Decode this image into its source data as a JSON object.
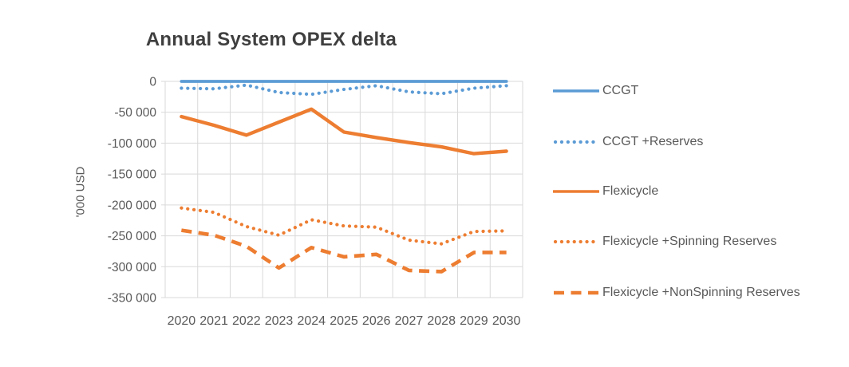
{
  "page": {
    "background": "#ffffff"
  },
  "chart_data": {
    "type": "line",
    "title": "Annual System OPEX delta",
    "ylabel": "'000 USD",
    "categories": [
      "2020",
      "2021",
      "2022",
      "2023",
      "2024",
      "2025",
      "2026",
      "2027",
      "2028",
      "2029",
      "2030"
    ],
    "ylim": [
      -350000,
      0
    ],
    "ytick_interval": 50000,
    "ytick_labels": [
      "0",
      "-50 000",
      "-100 000",
      "-150 000",
      "-200 000",
      "-250 000",
      "-300 000",
      "-350 000"
    ],
    "grid": true,
    "legend_position": "right",
    "colors": {
      "blue": "#5B9BD5",
      "orange": "#ED7D31",
      "gridline": "#D9D9D9",
      "axis_text": "#595959",
      "title_text": "#3F3F3F"
    },
    "series": [
      {
        "name": "CCGT",
        "color": "#5B9BD5",
        "line_style": "solid",
        "values": [
          0,
          0,
          0,
          0,
          0,
          0,
          0,
          0,
          0,
          0,
          0
        ]
      },
      {
        "name": "CCGT +Reserves",
        "color": "#5B9BD5",
        "line_style": "dotted",
        "values": [
          -11000,
          -12000,
          -6000,
          -18000,
          -21000,
          -13000,
          -7000,
          -17000,
          -20000,
          -11000,
          -7000
        ]
      },
      {
        "name": "Flexicycle",
        "color": "#ED7D31",
        "line_style": "solid",
        "values": [
          -57000,
          -71000,
          -87000,
          -66000,
          -45000,
          -82000,
          -91000,
          -99000,
          -106000,
          -117000,
          -113000
        ]
      },
      {
        "name": "Flexicycle +Spinning Reserves",
        "color": "#ED7D31",
        "line_style": "dotted",
        "values": [
          -205000,
          -212000,
          -235000,
          -249000,
          -224000,
          -234000,
          -236000,
          -257000,
          -263000,
          -243000,
          -242000
        ]
      },
      {
        "name": "Flexicycle +NonSpinning Reserves",
        "color": "#ED7D31",
        "line_style": "dashed",
        "values": [
          -241000,
          -249000,
          -267000,
          -302000,
          -269000,
          -284000,
          -280000,
          -306000,
          -308000,
          -277000,
          -277000
        ]
      }
    ]
  }
}
